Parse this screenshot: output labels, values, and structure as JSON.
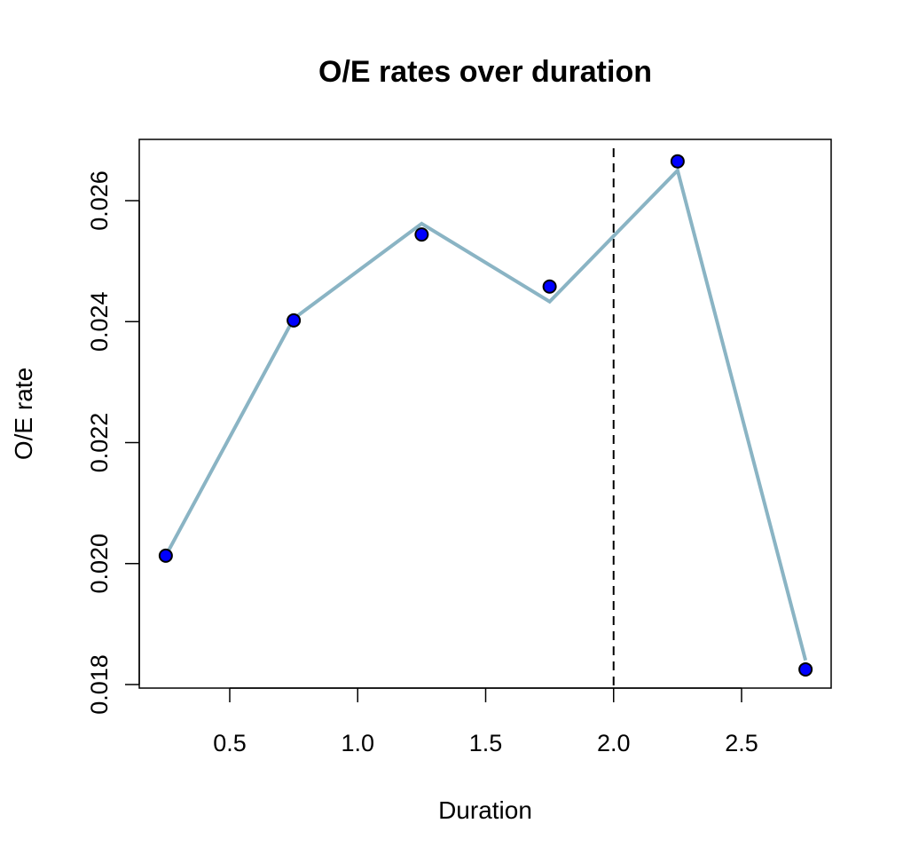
{
  "chart_data": {
    "type": "line",
    "title": "O/E rates over duration",
    "xlabel": "Duration",
    "ylabel": "O/E rate",
    "xlim": [
      0.2,
      2.85
    ],
    "ylim": [
      0.0179,
      0.0269
    ],
    "x_ticks": [
      0.5,
      1.0,
      1.5,
      2.0,
      2.5
    ],
    "x_tick_labels": [
      "0.5",
      "1.0",
      "1.5",
      "2.0",
      "2.5"
    ],
    "y_ticks": [
      0.018,
      0.02,
      0.022,
      0.024,
      0.026
    ],
    "y_tick_labels": [
      "0.018",
      "0.020",
      "0.022",
      "0.024",
      "0.026"
    ],
    "grid": false,
    "reference_line": {
      "orientation": "vertical",
      "x": 2.0,
      "style": "dashed",
      "color": "#000000"
    },
    "series": [
      {
        "kind": "points",
        "x": [
          0.25,
          0.75,
          1.25,
          1.75,
          2.25,
          2.75
        ],
        "y": [
          0.02013,
          0.02402,
          0.02544,
          0.02458,
          0.02665,
          0.01825
        ],
        "color": "#0000ff",
        "stroke": "#000000"
      },
      {
        "kind": "line",
        "x": [
          0.25,
          0.75,
          1.25,
          1.75,
          2.25,
          2.75
        ],
        "y": [
          0.02013,
          0.02405,
          0.02562,
          0.02433,
          0.0265,
          0.0184
        ],
        "color": "#8ab4c4"
      }
    ]
  }
}
